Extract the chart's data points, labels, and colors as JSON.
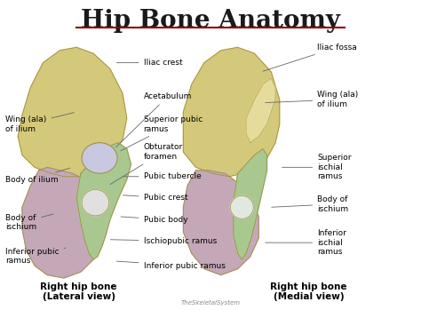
{
  "title": "Hip Bone Anatomy",
  "title_fontsize": 20,
  "title_color": "#1a1a1a",
  "background_color": "#ffffff",
  "figsize": [
    4.74,
    3.49
  ],
  "dpi": 100,
  "ilium_color": "#d4c97a",
  "ischium_color": "#c4a8b8",
  "pubis_color": "#a8c890",
  "acetab_color": "#c8c8e0",
  "bone_edge": "#a09040",
  "underline_color": "#8B0000",
  "arrow_color": "#555555",
  "text_fontsize": 6.5,
  "label_fontsize": 7.5,
  "watermark": "TheSkeletalSystem",
  "left_label": "Right hip bone\n(Lateral view)",
  "right_label": "Right hip bone\n(Medial view)"
}
